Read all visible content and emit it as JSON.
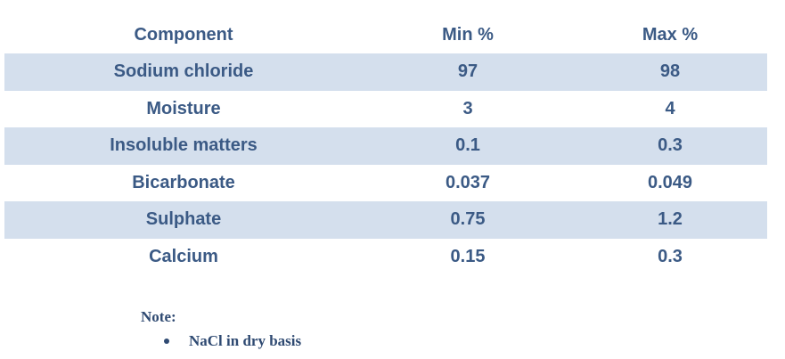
{
  "table": {
    "headers": [
      "Component",
      "Min %",
      "Max %"
    ],
    "rows": [
      [
        "Sodium chloride",
        "97",
        "98"
      ],
      [
        "Moisture",
        "3",
        "4"
      ],
      [
        "Insoluble matters",
        "0.1",
        "0.3"
      ],
      [
        "Bicarbonate",
        "0.037",
        "0.049"
      ],
      [
        "Sulphate",
        "0.75",
        "1.2"
      ],
      [
        "Calcium",
        "0.15",
        "0.3"
      ]
    ]
  },
  "note": {
    "label": "Note:",
    "items": [
      "NaCl in dry basis"
    ]
  },
  "colors": {
    "text": "#3b5a85",
    "band": "#d4dfed",
    "note_text": "#2f4a72"
  }
}
